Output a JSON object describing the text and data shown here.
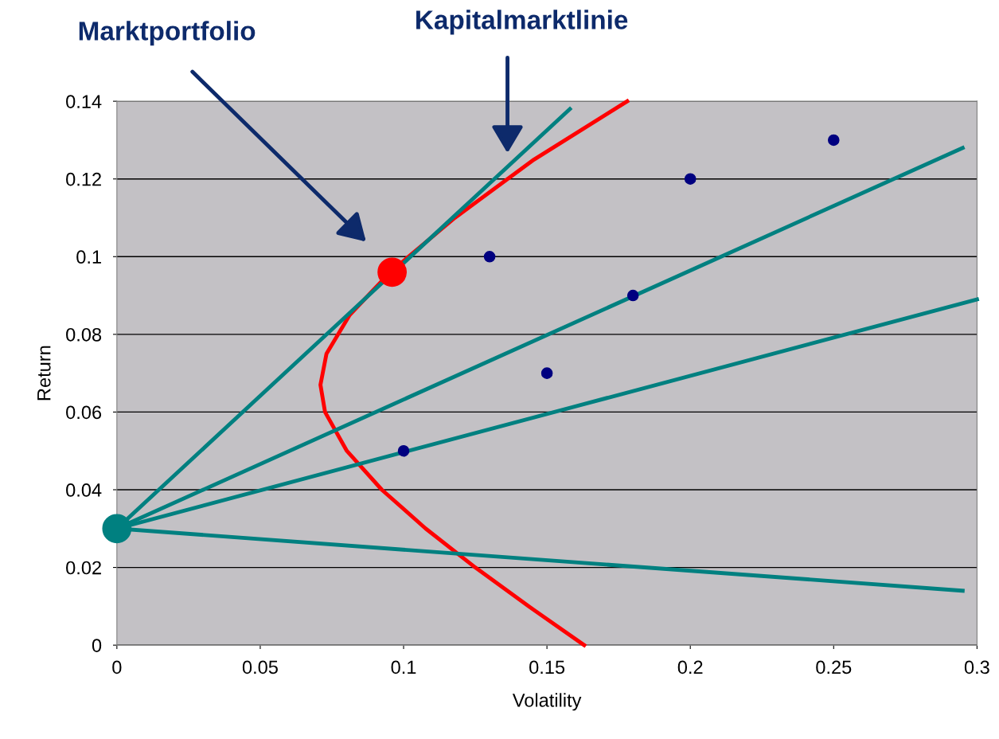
{
  "chart_data": {
    "type": "scatter",
    "xlabel": "Volatility",
    "ylabel": "Return",
    "xlim": [
      0,
      0.3
    ],
    "xticks": [
      0,
      0.05,
      0.1,
      0.15,
      0.2,
      0.25,
      0.3
    ],
    "ylim": [
      0,
      0.14
    ],
    "yticks": [
      0,
      0.02,
      0.04,
      0.06,
      0.08,
      0.1,
      0.12,
      0.14
    ],
    "grid": "y",
    "legend": false,
    "annotations": [
      "Marktportfolio",
      "Kapitalmarktlinie"
    ],
    "series": [
      {
        "type": "line",
        "color": "#ff0000",
        "x": [
          0.163,
          0.1436,
          0.125,
          0.1077,
          0.0924,
          0.0802,
          0.0726,
          0.071,
          0.0731,
          0.0812,
          0.0953,
          0.1179,
          0.1455,
          0.178
        ],
        "values": [
          0,
          0.01,
          0.02,
          0.03,
          0.04,
          0.05,
          0.06,
          0.067,
          0.075,
          0.085,
          0.096,
          0.11,
          0.125,
          0.14
        ]
      },
      {
        "type": "line",
        "color": "#008080",
        "x": [
          0,
          0.158
        ],
        "values": [
          0.03,
          0.138
        ]
      },
      {
        "type": "line",
        "color": "#008080",
        "x": [
          0,
          0.295
        ],
        "values": [
          0.03,
          0.128
        ]
      },
      {
        "type": "line",
        "color": "#008080",
        "x": [
          0,
          0.3
        ],
        "values": [
          0.03,
          0.089
        ]
      },
      {
        "type": "line",
        "color": "#008080",
        "x": [
          0,
          0.295
        ],
        "values": [
          0.03,
          0.014
        ]
      },
      {
        "color": "#000080",
        "x": [
          0.1,
          0.13,
          0.15,
          0.18,
          0.2,
          0.25
        ],
        "values": [
          0.05,
          0.1,
          0.07,
          0.09,
          0.12,
          0.13
        ]
      },
      {
        "type": "bubble",
        "color": "#ff0000",
        "x": [
          0.096
        ],
        "values": [
          0.096
        ],
        "sizes": [
          1
        ]
      },
      {
        "type": "bubble",
        "color": "#008080",
        "x": [
          0
        ],
        "values": [
          0.03
        ],
        "sizes": [
          1
        ]
      }
    ]
  }
}
